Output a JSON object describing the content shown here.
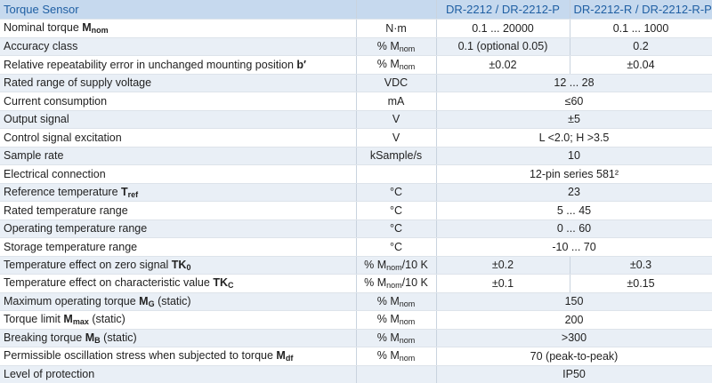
{
  "table": {
    "header": [
      "Torque Sensor",
      "DR-2212 / DR-2212-P",
      "DR-2212-R / DR-2212-R-P"
    ],
    "rows": [
      {
        "parameter": {
          "text": "Nominal torque",
          "symbol": "M",
          "sub": "nom"
        },
        "unit": {
          "text": "N·m"
        },
        "values": [
          "0.1 ... 20000",
          "0.1 ... 1000"
        ]
      },
      {
        "parameter": {
          "text": "Accuracy class"
        },
        "unit": {
          "text": "% M",
          "sub": "nom"
        },
        "values": [
          "0.1 (optional 0.05)",
          "0.2"
        ]
      },
      {
        "parameter": {
          "text": "Relative repeatability error in unchanged mounting position",
          "symbol": "b′"
        },
        "unit": {
          "text": "% M",
          "sub": "nom"
        },
        "values": [
          "±0.02",
          "±0.04"
        ]
      },
      {
        "parameter": {
          "text": "Rated range of supply voltage"
        },
        "unit": {
          "text": "VDC"
        },
        "values": [
          "12 ... 28"
        ]
      },
      {
        "parameter": {
          "text": "Current consumption"
        },
        "unit": {
          "text": "mA"
        },
        "values": [
          "≤60"
        ]
      },
      {
        "parameter": {
          "text": "Output signal"
        },
        "unit": {
          "text": "V"
        },
        "values": [
          "±5"
        ]
      },
      {
        "parameter": {
          "text": "Control signal excitation"
        },
        "unit": {
          "text": "V"
        },
        "values": [
          "L <2.0; H >3.5"
        ]
      },
      {
        "parameter": {
          "text": "Sample rate"
        },
        "unit": {
          "text": "kSample/s"
        },
        "values": [
          "10"
        ]
      },
      {
        "parameter": {
          "text": "Electrical connection"
        },
        "values": [
          "12-pin series 581²"
        ]
      },
      {
        "parameter": {
          "text": "Reference temperature",
          "symbol": "T",
          "sub": "ref"
        },
        "unit": {
          "text": "°C"
        },
        "values": [
          "23"
        ]
      },
      {
        "parameter": {
          "text": "Rated temperature range"
        },
        "unit": {
          "text": "°C"
        },
        "values": [
          "5 ... 45"
        ]
      },
      {
        "parameter": {
          "text": "Operating temperature range"
        },
        "unit": {
          "text": "°C"
        },
        "values": [
          "0 ... 60"
        ]
      },
      {
        "parameter": {
          "text": "Storage temperature range"
        },
        "unit": {
          "text": "°C"
        },
        "values": [
          "-10 ... 70"
        ]
      },
      {
        "parameter": {
          "text": "Temperature effect on zero signal",
          "symbol": "TK",
          "sub": "0"
        },
        "unit": {
          "text": "% M",
          "sub": "nom",
          "suffix": "/10 K"
        },
        "values": [
          "±0.2",
          "±0.3"
        ]
      },
      {
        "parameter": {
          "text": "Temperature effect on characteristic value",
          "symbol": "TK",
          "sub": "C"
        },
        "unit": {
          "text": "% M",
          "sub": "nom",
          "suffix": "/10 K"
        },
        "values": [
          "±0.1",
          "±0.15"
        ]
      },
      {
        "parameter": {
          "text": "Maximum operating torque",
          "symbol": "M",
          "sub": "G",
          "suffix": "(static)"
        },
        "unit": {
          "text": "% M",
          "sub": "nom"
        },
        "values": [
          "150"
        ]
      },
      {
        "parameter": {
          "text": "Torque limit",
          "symbol": "M",
          "sub": "max",
          "suffix": "(static)"
        },
        "unit": {
          "text": "% M",
          "sub": "nom"
        },
        "values": [
          "200"
        ]
      },
      {
        "parameter": {
          "text": "Breaking torque",
          "symbol": "M",
          "sub": "B",
          "suffix": "(static)"
        },
        "unit": {
          "text": "% M",
          "sub": "nom"
        },
        "values": [
          ">300"
        ]
      },
      {
        "parameter": {
          "text": "Permissible oscillation stress when subjected to torque",
          "symbol": "M",
          "sub": "df"
        },
        "unit": {
          "text": "% M",
          "sub": "nom"
        },
        "values": [
          "70 (peak-to-peak)"
        ]
      },
      {
        "parameter": {
          "text": "Level of protection"
        },
        "values": [
          "IP50"
        ]
      }
    ]
  }
}
